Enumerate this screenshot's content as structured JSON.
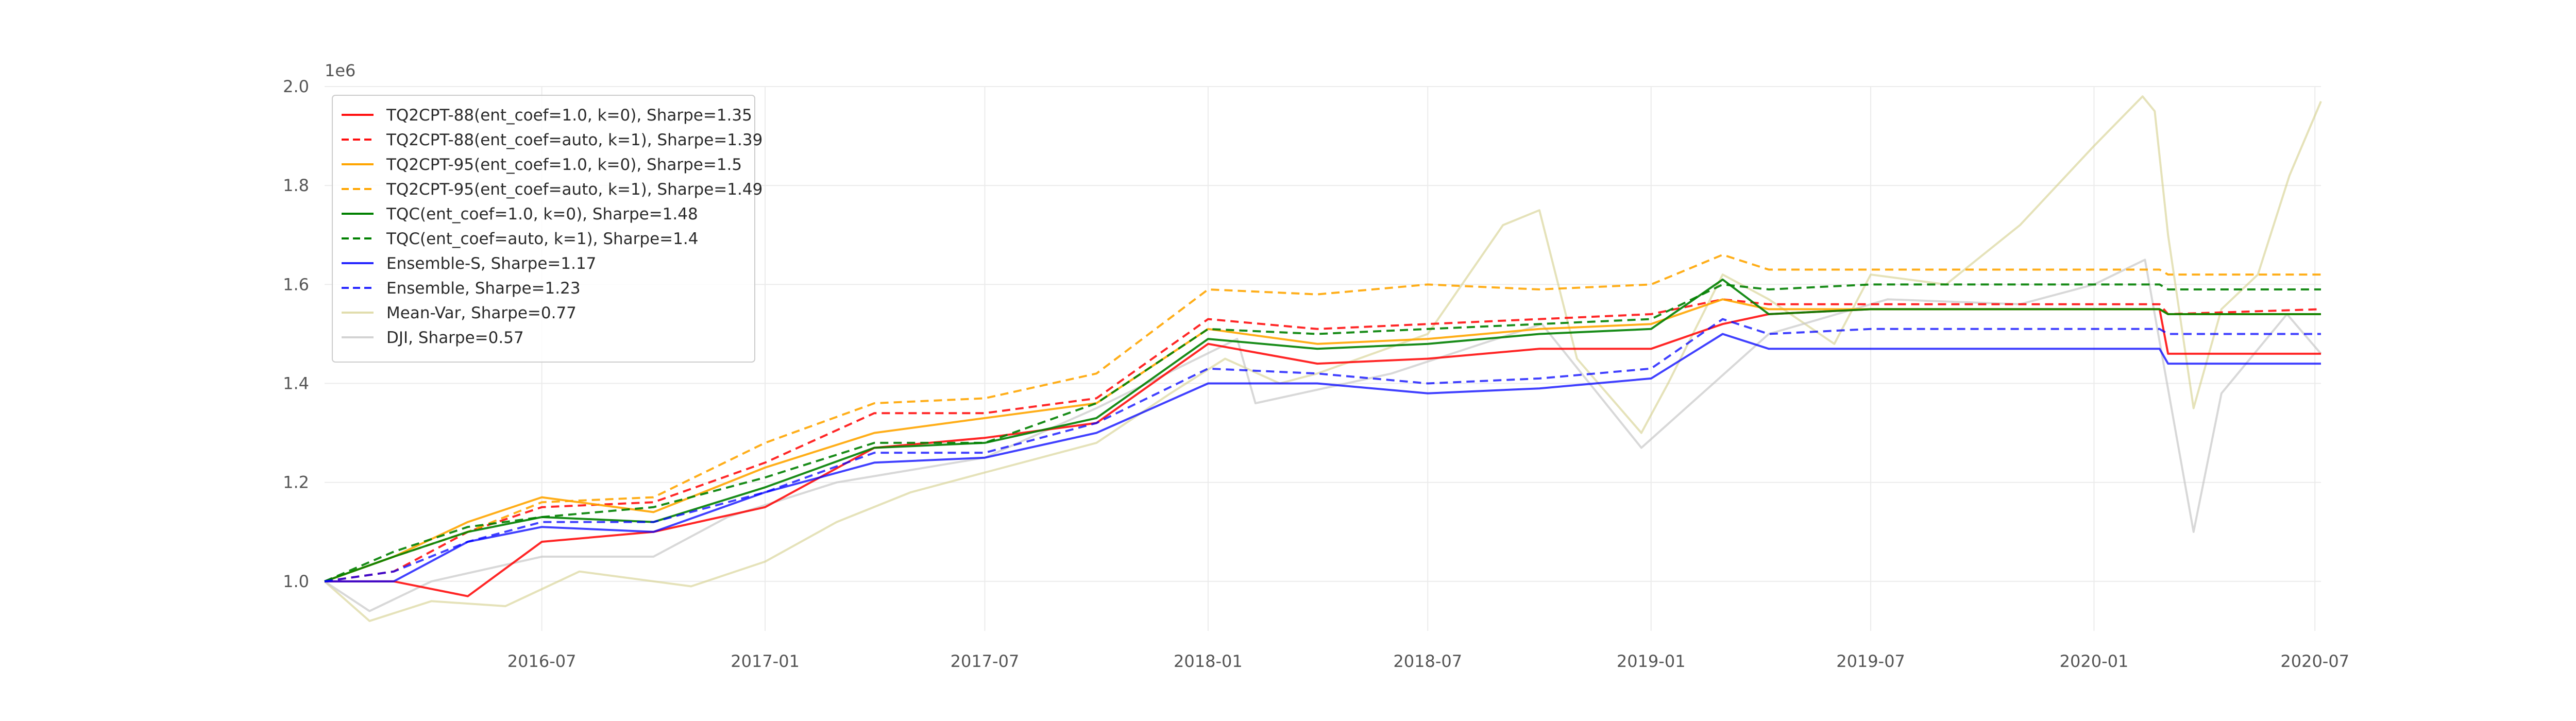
{
  "chart_data": {
    "type": "line",
    "title": "",
    "xlabel": "",
    "ylabel": "",
    "y_offset_label": "1e6",
    "x_range": [
      "2016-01-04",
      "2020-07-06"
    ],
    "ylim": [
      0.9,
      2.0
    ],
    "yticks": [
      1.0,
      1.2,
      1.4,
      1.6,
      1.8,
      2.0
    ],
    "ytick_labels": [
      "1.0",
      "1.2",
      "1.4",
      "1.6",
      "1.8",
      "2.0"
    ],
    "xticks": [
      "2016-07-01",
      "2017-01-01",
      "2017-07-01",
      "2018-01-01",
      "2018-07-01",
      "2019-01-01",
      "2019-07-01",
      "2020-01-01",
      "2020-07-01"
    ],
    "xtick_labels": [
      "2016-07",
      "2017-01",
      "2017-07",
      "2018-01",
      "2018-07",
      "2019-01",
      "2019-07",
      "2020-01",
      "2020-07"
    ],
    "grid": true,
    "legend_position": "upper-left",
    "series": [
      {
        "name": "TQ2CPT-88(ent_coef=1.0, k=0), Sharpe=1.35",
        "color": "#ff0000",
        "dashed": false,
        "opacity": 0.85,
        "points": [
          [
            "2016-01-04",
            1.0
          ],
          [
            "2016-03-01",
            1.0
          ],
          [
            "2016-05-01",
            0.97
          ],
          [
            "2016-07-01",
            1.08
          ],
          [
            "2016-10-01",
            1.1
          ],
          [
            "2017-01-01",
            1.15
          ],
          [
            "2017-04-01",
            1.27
          ],
          [
            "2017-07-01",
            1.29
          ],
          [
            "2017-10-01",
            1.32
          ],
          [
            "2018-01-01",
            1.48
          ],
          [
            "2018-04-01",
            1.44
          ],
          [
            "2018-07-01",
            1.45
          ],
          [
            "2018-10-01",
            1.47
          ],
          [
            "2019-01-01",
            1.47
          ],
          [
            "2019-03-01",
            1.52
          ],
          [
            "2019-04-08",
            1.54
          ],
          [
            "2019-07-01",
            1.55
          ],
          [
            "2020-01-01",
            1.55
          ],
          [
            "2020-02-24",
            1.55
          ],
          [
            "2020-03-02",
            1.46
          ],
          [
            "2020-07-06",
            1.46
          ]
        ]
      },
      {
        "name": "TQ2CPT-88(ent_coef=auto, k=1), Sharpe=1.39",
        "color": "#ff0000",
        "dashed": true,
        "opacity": 0.85,
        "points": [
          [
            "2016-01-04",
            1.0
          ],
          [
            "2016-03-01",
            1.02
          ],
          [
            "2016-05-01",
            1.1
          ],
          [
            "2016-07-01",
            1.15
          ],
          [
            "2016-10-01",
            1.16
          ],
          [
            "2017-01-01",
            1.24
          ],
          [
            "2017-04-01",
            1.34
          ],
          [
            "2017-07-01",
            1.34
          ],
          [
            "2017-10-01",
            1.37
          ],
          [
            "2018-01-01",
            1.53
          ],
          [
            "2018-04-01",
            1.51
          ],
          [
            "2018-07-01",
            1.52
          ],
          [
            "2018-10-01",
            1.53
          ],
          [
            "2019-01-01",
            1.54
          ],
          [
            "2019-03-01",
            1.57
          ],
          [
            "2019-04-08",
            1.56
          ],
          [
            "2019-07-01",
            1.56
          ],
          [
            "2020-01-01",
            1.56
          ],
          [
            "2020-02-24",
            1.56
          ],
          [
            "2020-03-02",
            1.54
          ],
          [
            "2020-07-06",
            1.55
          ]
        ]
      },
      {
        "name": "TQ2CPT-95(ent_coef=1.0, k=0), Sharpe=1.5",
        "color": "#ffa500",
        "dashed": false,
        "opacity": 0.9,
        "points": [
          [
            "2016-01-04",
            1.0
          ],
          [
            "2016-03-01",
            1.05
          ],
          [
            "2016-05-01",
            1.12
          ],
          [
            "2016-07-01",
            1.17
          ],
          [
            "2016-10-01",
            1.14
          ],
          [
            "2017-01-01",
            1.23
          ],
          [
            "2017-04-01",
            1.3
          ],
          [
            "2017-07-01",
            1.33
          ],
          [
            "2017-10-01",
            1.36
          ],
          [
            "2018-01-01",
            1.51
          ],
          [
            "2018-04-01",
            1.48
          ],
          [
            "2018-07-01",
            1.49
          ],
          [
            "2018-10-01",
            1.51
          ],
          [
            "2019-01-01",
            1.52
          ],
          [
            "2019-03-01",
            1.57
          ],
          [
            "2019-04-08",
            1.55
          ],
          [
            "2019-07-01",
            1.55
          ],
          [
            "2020-01-01",
            1.55
          ],
          [
            "2020-02-24",
            1.55
          ],
          [
            "2020-03-02",
            1.54
          ],
          [
            "2020-07-06",
            1.54
          ]
        ]
      },
      {
        "name": "TQ2CPT-95(ent_coef=auto, k=1), Sharpe=1.49",
        "color": "#ffa500",
        "dashed": true,
        "opacity": 0.9,
        "points": [
          [
            "2016-01-04",
            1.0
          ],
          [
            "2016-03-01",
            1.05
          ],
          [
            "2016-05-01",
            1.1
          ],
          [
            "2016-07-01",
            1.16
          ],
          [
            "2016-10-01",
            1.17
          ],
          [
            "2017-01-01",
            1.28
          ],
          [
            "2017-04-01",
            1.36
          ],
          [
            "2017-07-01",
            1.37
          ],
          [
            "2017-10-01",
            1.42
          ],
          [
            "2018-01-01",
            1.59
          ],
          [
            "2018-04-01",
            1.58
          ],
          [
            "2018-07-01",
            1.6
          ],
          [
            "2018-10-01",
            1.59
          ],
          [
            "2019-01-01",
            1.6
          ],
          [
            "2019-03-01",
            1.66
          ],
          [
            "2019-04-08",
            1.63
          ],
          [
            "2019-07-01",
            1.63
          ],
          [
            "2020-01-01",
            1.63
          ],
          [
            "2020-02-24",
            1.63
          ],
          [
            "2020-03-02",
            1.62
          ],
          [
            "2020-07-06",
            1.62
          ]
        ]
      },
      {
        "name": "TQC(ent_coef=1.0, k=0), Sharpe=1.48",
        "color": "#008000",
        "dashed": false,
        "opacity": 0.9,
        "points": [
          [
            "2016-01-04",
            1.0
          ],
          [
            "2016-03-01",
            1.05
          ],
          [
            "2016-05-01",
            1.1
          ],
          [
            "2016-07-01",
            1.13
          ],
          [
            "2016-10-01",
            1.12
          ],
          [
            "2017-01-01",
            1.19
          ],
          [
            "2017-04-01",
            1.27
          ],
          [
            "2017-07-01",
            1.28
          ],
          [
            "2017-10-01",
            1.33
          ],
          [
            "2018-01-01",
            1.49
          ],
          [
            "2018-04-01",
            1.47
          ],
          [
            "2018-07-01",
            1.48
          ],
          [
            "2018-10-01",
            1.5
          ],
          [
            "2019-01-01",
            1.51
          ],
          [
            "2019-03-01",
            1.61
          ],
          [
            "2019-04-08",
            1.54
          ],
          [
            "2019-07-01",
            1.55
          ],
          [
            "2020-01-01",
            1.55
          ],
          [
            "2020-02-24",
            1.55
          ],
          [
            "2020-03-02",
            1.54
          ],
          [
            "2020-07-06",
            1.54
          ]
        ]
      },
      {
        "name": "TQC(ent_coef=auto, k=1), Sharpe=1.4",
        "color": "#008000",
        "dashed": true,
        "opacity": 0.9,
        "points": [
          [
            "2016-01-04",
            1.0
          ],
          [
            "2016-03-01",
            1.06
          ],
          [
            "2016-05-01",
            1.11
          ],
          [
            "2016-07-01",
            1.13
          ],
          [
            "2016-10-01",
            1.15
          ],
          [
            "2017-01-01",
            1.21
          ],
          [
            "2017-04-01",
            1.28
          ],
          [
            "2017-07-01",
            1.28
          ],
          [
            "2017-10-01",
            1.36
          ],
          [
            "2018-01-01",
            1.51
          ],
          [
            "2018-04-01",
            1.5
          ],
          [
            "2018-07-01",
            1.51
          ],
          [
            "2018-10-01",
            1.52
          ],
          [
            "2019-01-01",
            1.53
          ],
          [
            "2019-03-01",
            1.6
          ],
          [
            "2019-04-08",
            1.59
          ],
          [
            "2019-07-01",
            1.6
          ],
          [
            "2020-01-01",
            1.6
          ],
          [
            "2020-02-24",
            1.6
          ],
          [
            "2020-03-02",
            1.59
          ],
          [
            "2020-07-06",
            1.59
          ]
        ]
      },
      {
        "name": "Ensemble-S, Sharpe=1.17",
        "color": "#0000ff",
        "dashed": false,
        "opacity": 0.75,
        "points": [
          [
            "2016-01-04",
            1.0
          ],
          [
            "2016-03-01",
            1.0
          ],
          [
            "2016-05-01",
            1.08
          ],
          [
            "2016-07-01",
            1.11
          ],
          [
            "2016-10-01",
            1.1
          ],
          [
            "2017-01-01",
            1.18
          ],
          [
            "2017-04-01",
            1.24
          ],
          [
            "2017-07-01",
            1.25
          ],
          [
            "2017-10-01",
            1.3
          ],
          [
            "2018-01-01",
            1.4
          ],
          [
            "2018-04-01",
            1.4
          ],
          [
            "2018-07-01",
            1.38
          ],
          [
            "2018-10-01",
            1.39
          ],
          [
            "2019-01-01",
            1.41
          ],
          [
            "2019-03-01",
            1.5
          ],
          [
            "2019-04-08",
            1.47
          ],
          [
            "2019-07-01",
            1.47
          ],
          [
            "2020-01-01",
            1.47
          ],
          [
            "2020-02-24",
            1.47
          ],
          [
            "2020-03-02",
            1.44
          ],
          [
            "2020-07-06",
            1.44
          ]
        ]
      },
      {
        "name": "Ensemble, Sharpe=1.23",
        "color": "#0000ff",
        "dashed": true,
        "opacity": 0.75,
        "points": [
          [
            "2016-01-04",
            1.0
          ],
          [
            "2016-03-01",
            1.02
          ],
          [
            "2016-05-01",
            1.08
          ],
          [
            "2016-07-01",
            1.12
          ],
          [
            "2016-10-01",
            1.12
          ],
          [
            "2017-01-01",
            1.18
          ],
          [
            "2017-04-01",
            1.26
          ],
          [
            "2017-07-01",
            1.26
          ],
          [
            "2017-10-01",
            1.32
          ],
          [
            "2018-01-01",
            1.43
          ],
          [
            "2018-04-01",
            1.42
          ],
          [
            "2018-07-01",
            1.4
          ],
          [
            "2018-10-01",
            1.41
          ],
          [
            "2019-01-01",
            1.43
          ],
          [
            "2019-03-01",
            1.53
          ],
          [
            "2019-04-08",
            1.5
          ],
          [
            "2019-07-01",
            1.51
          ],
          [
            "2020-01-01",
            1.51
          ],
          [
            "2020-02-24",
            1.51
          ],
          [
            "2020-03-02",
            1.5
          ],
          [
            "2020-07-06",
            1.5
          ]
        ]
      },
      {
        "name": "Mean-Var, Sharpe=0.77",
        "color": "#d4cf8a",
        "dashed": false,
        "opacity": 0.6,
        "points": [
          [
            "2016-01-04",
            1.0
          ],
          [
            "2016-02-10",
            0.92
          ],
          [
            "2016-04-01",
            0.96
          ],
          [
            "2016-06-01",
            0.95
          ],
          [
            "2016-08-01",
            1.02
          ],
          [
            "2016-11-01",
            0.99
          ],
          [
            "2017-01-01",
            1.04
          ],
          [
            "2017-03-01",
            1.12
          ],
          [
            "2017-05-01",
            1.18
          ],
          [
            "2017-07-01",
            1.22
          ],
          [
            "2017-10-01",
            1.28
          ],
          [
            "2017-12-01",
            1.38
          ],
          [
            "2018-01-15",
            1.45
          ],
          [
            "2018-03-01",
            1.4
          ],
          [
            "2018-04-01",
            1.42
          ],
          [
            "2018-07-01",
            1.5
          ],
          [
            "2018-09-01",
            1.72
          ],
          [
            "2018-10-01",
            1.75
          ],
          [
            "2018-11-01",
            1.45
          ],
          [
            "2018-12-24",
            1.3
          ],
          [
            "2019-01-15",
            1.4
          ],
          [
            "2019-03-01",
            1.62
          ],
          [
            "2019-04-08",
            1.57
          ],
          [
            "2019-06-01",
            1.48
          ],
          [
            "2019-07-01",
            1.62
          ],
          [
            "2019-09-01",
            1.6
          ],
          [
            "2019-11-01",
            1.72
          ],
          [
            "2020-01-01",
            1.88
          ],
          [
            "2020-02-10",
            1.98
          ],
          [
            "2020-02-20",
            1.95
          ],
          [
            "2020-03-02",
            1.7
          ],
          [
            "2020-03-23",
            1.35
          ],
          [
            "2020-04-15",
            1.55
          ],
          [
            "2020-05-15",
            1.62
          ],
          [
            "2020-06-10",
            1.82
          ],
          [
            "2020-07-06",
            1.97
          ]
        ]
      },
      {
        "name": "DJI, Sharpe=0.57",
        "color": "#c8c8c8",
        "dashed": false,
        "opacity": 0.7,
        "points": [
          [
            "2016-01-04",
            1.0
          ],
          [
            "2016-02-10",
            0.94
          ],
          [
            "2016-04-01",
            1.0
          ],
          [
            "2016-07-01",
            1.05
          ],
          [
            "2016-10-01",
            1.05
          ],
          [
            "2016-12-01",
            1.13
          ],
          [
            "2017-03-01",
            1.2
          ],
          [
            "2017-07-01",
            1.25
          ],
          [
            "2017-10-01",
            1.35
          ],
          [
            "2018-01-25",
            1.49
          ],
          [
            "2018-02-09",
            1.36
          ],
          [
            "2018-06-01",
            1.42
          ],
          [
            "2018-10-03",
            1.52
          ],
          [
            "2018-12-24",
            1.27
          ],
          [
            "2019-04-08",
            1.5
          ],
          [
            "2019-07-15",
            1.57
          ],
          [
            "2019-11-01",
            1.56
          ],
          [
            "2020-01-01",
            1.6
          ],
          [
            "2020-02-12",
            1.65
          ],
          [
            "2020-03-23",
            1.1
          ],
          [
            "2020-04-15",
            1.38
          ],
          [
            "2020-06-08",
            1.54
          ],
          [
            "2020-07-06",
            1.46
          ]
        ]
      }
    ]
  }
}
